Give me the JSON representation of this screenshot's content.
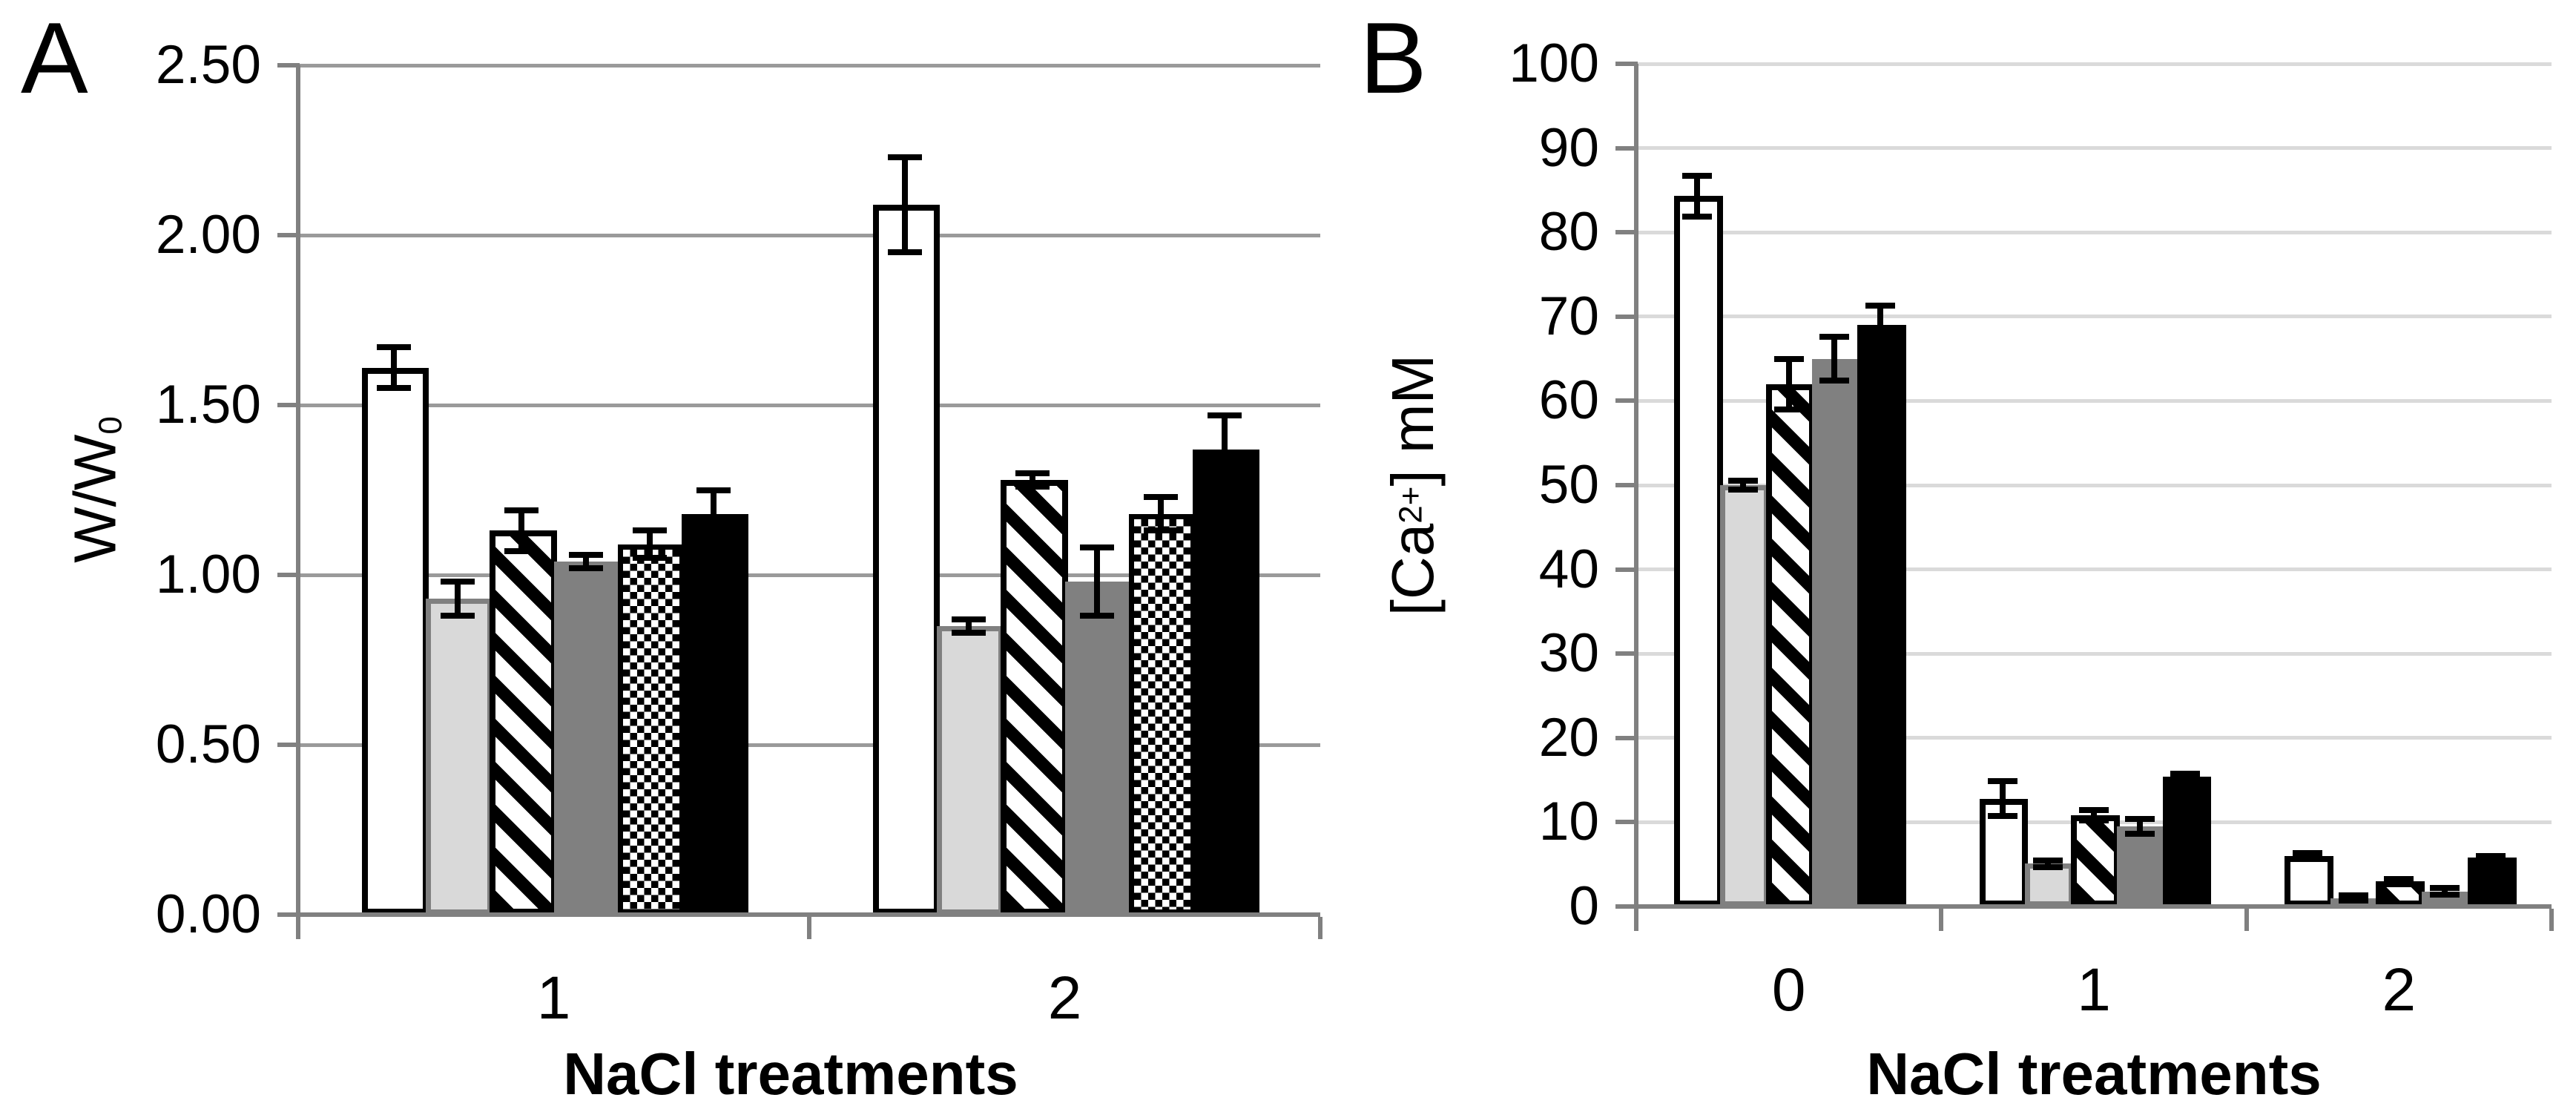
{
  "figure": {
    "background": "#ffffff",
    "axis_color": "#808080",
    "error_bar_color": "#000000"
  },
  "chart_data": [
    {
      "type": "bar",
      "panel_label": "A",
      "title": "",
      "xlabel": "NaCl treatments",
      "ylabel": "W/W0",
      "ylabel_parts": [
        {
          "text": "W/W"
        },
        {
          "text": "0",
          "script": "sub"
        }
      ],
      "categories": [
        "1",
        "2"
      ],
      "ylim": [
        0,
        2.5
      ],
      "ytick_step": 0.5,
      "ytick_decimals": 2,
      "grid": true,
      "gridline_color": "#9A9A9A",
      "legend": "none",
      "series": [
        {
          "name": "white",
          "pattern": "white",
          "fill": "#FFFFFF",
          "border": "#000000",
          "values": [
            1.61,
            2.09
          ],
          "errors": [
            0.06,
            0.14
          ]
        },
        {
          "name": "light-gray",
          "pattern": "light-gray",
          "fill": "#D9D9D9",
          "border": "#808080",
          "values": [
            0.93,
            0.85
          ],
          "errors": [
            0.05,
            0.02
          ]
        },
        {
          "name": "diagonal-stripes",
          "pattern": "diagonal-stripes",
          "fill": "#FFFFFF",
          "border": "#000000",
          "values": [
            1.13,
            1.28
          ],
          "errors": [
            0.06,
            0.02
          ]
        },
        {
          "name": "dark-gray",
          "pattern": "dark-gray",
          "fill": "#808080",
          "border": "#808080",
          "values": [
            1.04,
            0.98
          ],
          "errors": [
            0.02,
            0.1
          ]
        },
        {
          "name": "diamond-checker",
          "pattern": "diamond-checker",
          "fill": "#FFFFFF",
          "border": "#000000",
          "values": [
            1.09,
            1.18
          ],
          "errors": [
            0.04,
            0.05
          ]
        },
        {
          "name": "black",
          "pattern": "black",
          "fill": "#000000",
          "border": "#000000",
          "values": [
            1.18,
            1.37
          ],
          "errors": [
            0.07,
            0.1
          ]
        }
      ]
    },
    {
      "type": "bar",
      "panel_label": "B",
      "title": "",
      "xlabel": "NaCl treatments",
      "ylabel": "[Ca2+] mM",
      "ylabel_parts": [
        {
          "text": "[Ca"
        },
        {
          "text": "2+",
          "script": "sup"
        },
        {
          "text": "] mM"
        }
      ],
      "categories": [
        "0",
        "1",
        "2"
      ],
      "ylim": [
        0,
        100
      ],
      "ytick_step": 10,
      "ytick_decimals": 0,
      "grid": true,
      "gridline_color": "#DADADA",
      "legend": "none",
      "series": [
        {
          "name": "white",
          "pattern": "white",
          "fill": "#FFFFFF",
          "border": "#000000",
          "values": [
            84.3,
            12.8,
            6.0
          ],
          "errors": [
            2.4,
            2.1,
            0.3
          ]
        },
        {
          "name": "light-gray",
          "pattern": "light-gray",
          "fill": "#D9D9D9",
          "border": "#808080",
          "values": [
            50.0,
            5.1,
            1.0
          ],
          "errors": [
            0.5,
            0.4,
            0.3
          ]
        },
        {
          "name": "diagonal-stripes",
          "pattern": "diagonal-stripes",
          "fill": "#FFFFFF",
          "border": "#000000",
          "values": [
            62.0,
            10.8,
            3.0
          ],
          "errors": [
            3.0,
            0.6,
            0.3
          ]
        },
        {
          "name": "dark-gray",
          "pattern": "dark-gray",
          "fill": "#808080",
          "border": "#808080",
          "values": [
            65.0,
            9.5,
            1.8
          ],
          "errors": [
            2.6,
            0.9,
            0.4
          ]
        },
        {
          "name": "black",
          "pattern": "black",
          "fill": "#000000",
          "border": "#000000",
          "values": [
            69.0,
            15.4,
            5.8
          ],
          "errors": [
            2.3,
            0.4,
            0.2
          ]
        }
      ]
    }
  ]
}
